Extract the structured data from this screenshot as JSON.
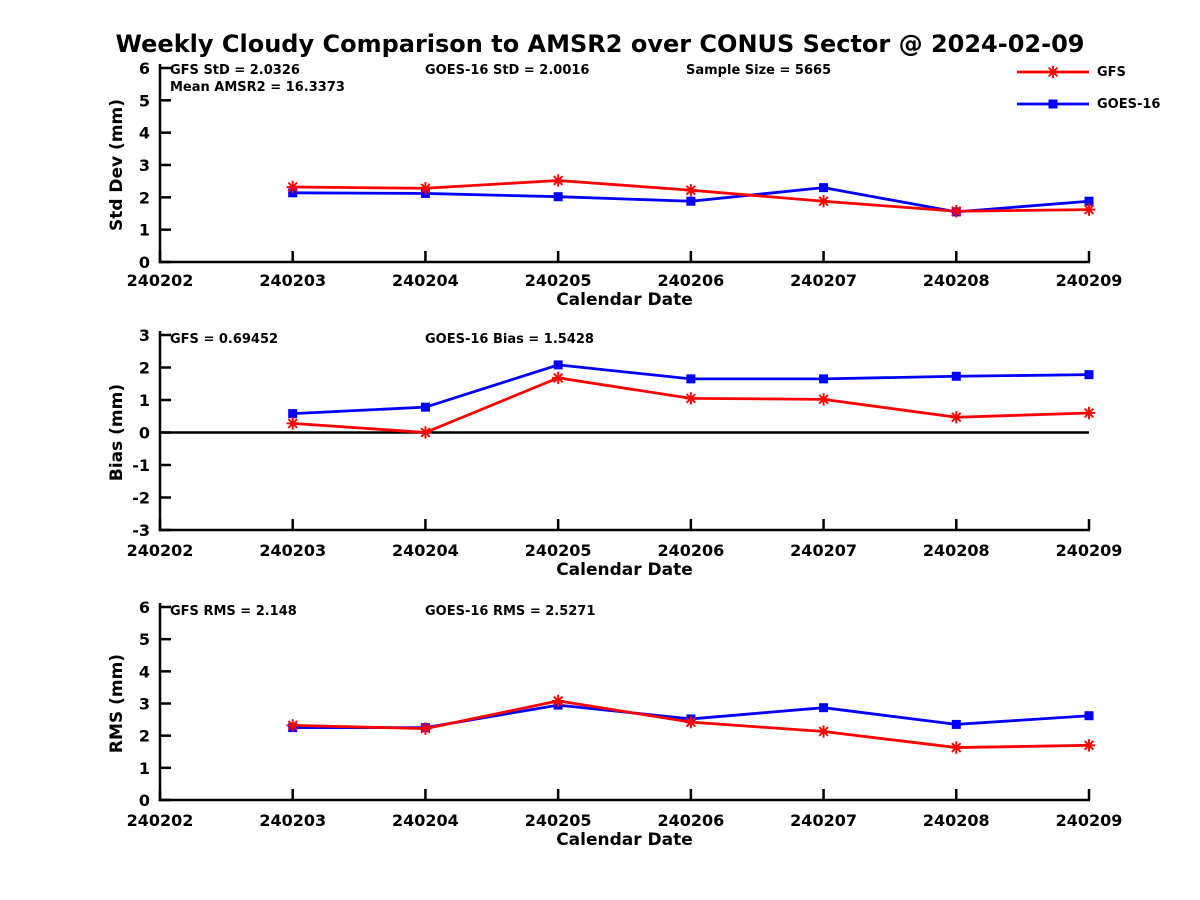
{
  "title": "Weekly Cloudy Comparison to AMSR2 over CONUS Sector @ 2024-02-09",
  "legend": {
    "position": "top-right",
    "items": [
      {
        "label": "GFS",
        "color": "#ff0000",
        "marker": "asterisk"
      },
      {
        "label": "GOES-16",
        "color": "#0000ff",
        "marker": "square"
      }
    ]
  },
  "chart_data": [
    {
      "type": "line",
      "title": "",
      "xlabel": "Calendar Date",
      "ylabel": "Std Dev (mm)",
      "ylim": [
        0,
        6
      ],
      "yticks": [
        0,
        1,
        2,
        3,
        4,
        5,
        6
      ],
      "grid": false,
      "categories": [
        "240202",
        "240203",
        "240204",
        "240205",
        "240206",
        "240207",
        "240208",
        "240209"
      ],
      "annotations": [
        {
          "text": "GFS StD = 2.0326",
          "x": 170,
          "y": 19
        },
        {
          "text": "Mean AMSR2 = 16.3373",
          "x": 170,
          "y": 36
        },
        {
          "text": "GOES-16 StD = 2.0016",
          "x": 425,
          "y": 19
        },
        {
          "text": "Sample Size = 5665",
          "x": 686,
          "y": 19
        }
      ],
      "series": [
        {
          "name": "GFS",
          "color": "#ff0000",
          "marker": "asterisk",
          "values": [
            null,
            2.32,
            2.28,
            2.52,
            2.22,
            1.88,
            1.57,
            1.62
          ]
        },
        {
          "name": "GOES-16",
          "color": "#0000ff",
          "marker": "square",
          "values": [
            null,
            2.14,
            2.12,
            2.02,
            1.88,
            2.3,
            1.55,
            1.88
          ]
        }
      ]
    },
    {
      "type": "line",
      "title": "",
      "xlabel": "Calendar Date",
      "ylabel": "Bias (mm)",
      "ylim": [
        -3,
        3
      ],
      "yticks": [
        -3,
        -2,
        -1,
        0,
        1,
        2,
        3
      ],
      "grid": false,
      "zero_line": true,
      "categories": [
        "240202",
        "240203",
        "240204",
        "240205",
        "240206",
        "240207",
        "240208",
        "240209"
      ],
      "annotations": [
        {
          "text": "GFS = 0.69452",
          "x": 170,
          "y": 23
        },
        {
          "text": "GOES-16 Bias  = 1.5428",
          "x": 425,
          "y": 23
        }
      ],
      "series": [
        {
          "name": "GFS",
          "color": "#ff0000",
          "marker": "asterisk",
          "values": [
            null,
            0.28,
            0.0,
            1.68,
            1.05,
            1.02,
            0.47,
            0.6
          ]
        },
        {
          "name": "GOES-16",
          "color": "#0000ff",
          "marker": "square",
          "values": [
            null,
            0.58,
            0.78,
            2.08,
            1.65,
            1.65,
            1.73,
            1.78
          ]
        }
      ]
    },
    {
      "type": "line",
      "title": "",
      "xlabel": "Calendar Date",
      "ylabel": "RMS (mm)",
      "ylim": [
        0,
        6
      ],
      "yticks": [
        0,
        1,
        2,
        3,
        4,
        5,
        6
      ],
      "grid": false,
      "categories": [
        "240202",
        "240203",
        "240204",
        "240205",
        "240206",
        "240207",
        "240208",
        "240209"
      ],
      "annotations": [
        {
          "text": "GFS RMS = 2.148",
          "x": 170,
          "y": 23
        },
        {
          "text": "GOES-16 RMS = 2.5271",
          "x": 425,
          "y": 23
        }
      ],
      "series": [
        {
          "name": "GFS",
          "color": "#ff0000",
          "marker": "asterisk",
          "values": [
            null,
            2.32,
            2.22,
            3.08,
            2.42,
            2.13,
            1.63,
            1.7
          ]
        },
        {
          "name": "GOES-16",
          "color": "#0000ff",
          "marker": "square",
          "values": [
            null,
            2.25,
            2.25,
            2.95,
            2.52,
            2.87,
            2.35,
            2.62
          ]
        }
      ]
    }
  ]
}
